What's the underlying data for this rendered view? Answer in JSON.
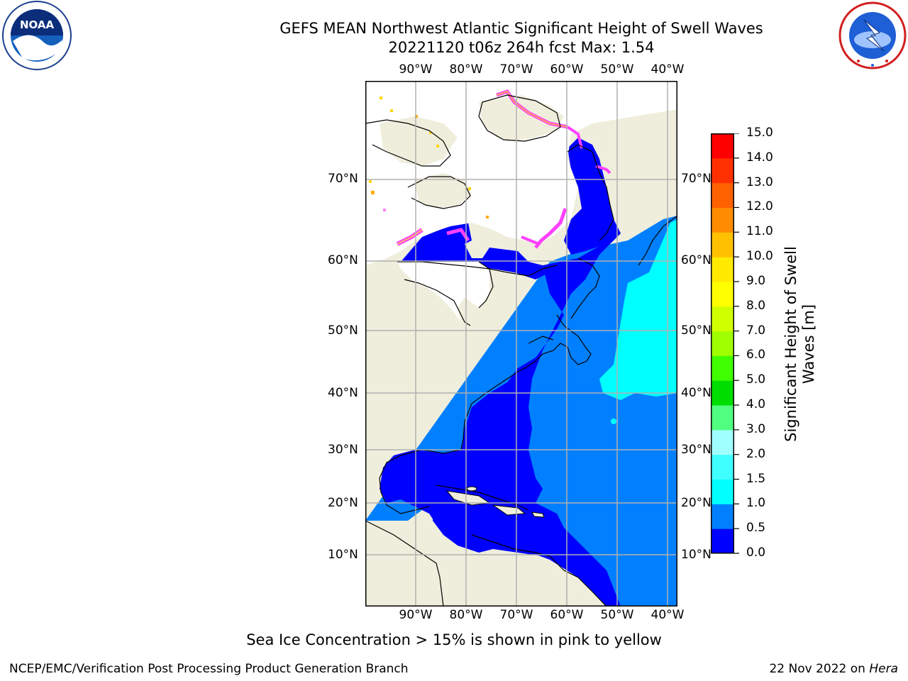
{
  "header": {
    "title_line1": "GEFS MEAN Northwest Atlantic Significant Height of Swell Waves",
    "title_line2": "20221120 t06z 264h fcst   Max: 1.54"
  },
  "logos": {
    "left_org": "NOAA",
    "left_ring_text": "NATIONAL OCEANIC AND ATMOSPHERIC ADMINISTRATION · U.S. DEPARTMENT OF COMMERCE",
    "right_ring_text": "NATIONAL WEATHER SERVICE"
  },
  "map": {
    "lon_labels": [
      "90°W",
      "80°W",
      "70°W",
      "60°W",
      "50°W",
      "40°W"
    ],
    "lat_labels": [
      "70°N",
      "60°N",
      "50°N",
      "40°N",
      "30°N",
      "20°N",
      "10°N"
    ],
    "colors": {
      "land": "#efeedc",
      "ice_free_land": "#ffffff",
      "swell_0_05": "#0000ff",
      "swell_05_10": "#0080ff",
      "swell_10_15": "#00ffff",
      "grid": "#b0b0b0",
      "sea_ice": "#ff40ff"
    }
  },
  "colorbar": {
    "label": "Significant Height of Swell Waves [m]",
    "ticks": [
      "0.0",
      "0.5",
      "1.0",
      "1.5",
      "2.0",
      "3.0",
      "4.0",
      "5.0",
      "6.0",
      "7.0",
      "8.0",
      "9.0",
      "10.0",
      "11.0",
      "12.0",
      "13.0",
      "14.0",
      "15.0"
    ],
    "colors": [
      "#0000ff",
      "#0080ff",
      "#00ffff",
      "#40ffff",
      "#a0ffff",
      "#50ff80",
      "#00dd00",
      "#40ff00",
      "#a0ff00",
      "#d0ff00",
      "#ffff00",
      "#ffea00",
      "#ffc000",
      "#ff8c00",
      "#ff6000",
      "#ff3000",
      "#ff0000"
    ]
  },
  "footer": {
    "note": "Sea Ice Concentration > 15% is shown in pink to yellow",
    "left": "NCEP/EMC/Verification Post Processing Product Generation Branch",
    "right_date": "22 Nov 2022 on ",
    "right_host": "Hera"
  }
}
